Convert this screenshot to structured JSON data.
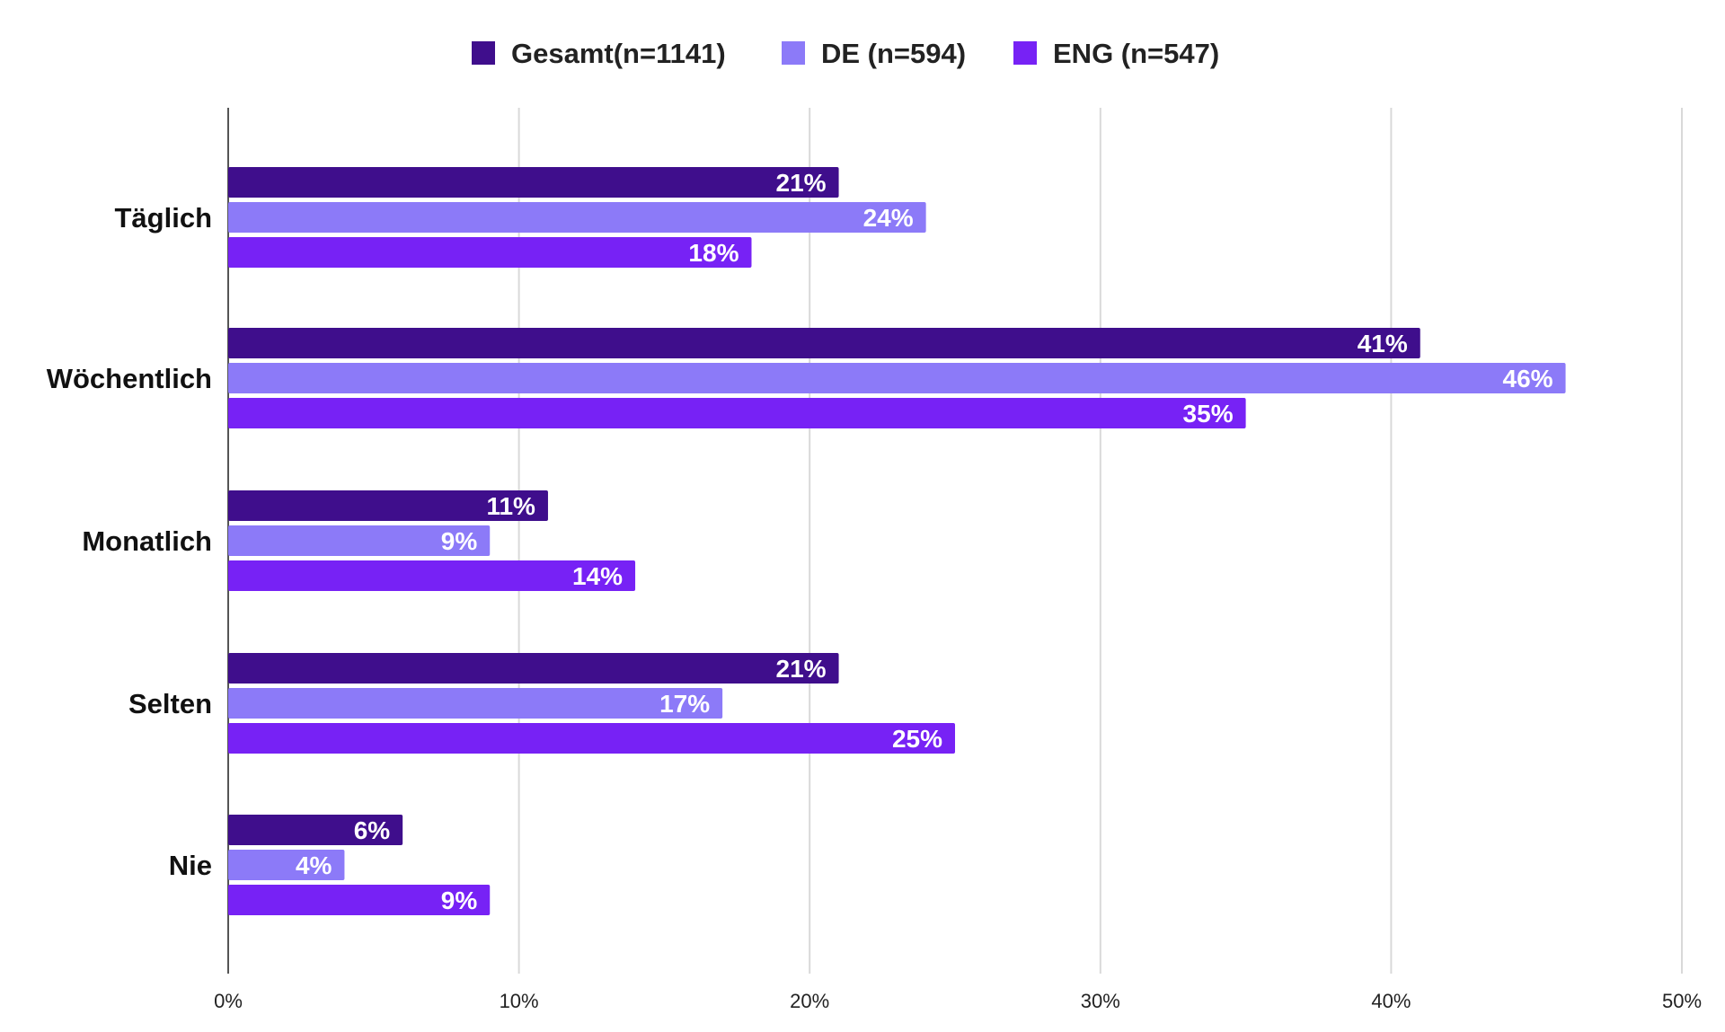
{
  "chart_data": {
    "type": "bar",
    "orientation": "horizontal",
    "categories": [
      "Täglich",
      "Wöchentlich",
      "Monatlich",
      "Selten",
      "Nie"
    ],
    "series": [
      {
        "name": "Gesamt(n=1141)",
        "color": "#3f0e8c",
        "values": [
          21,
          41,
          11,
          21,
          6
        ],
        "labels": [
          "21%",
          "41%",
          "11%",
          "21%",
          "6%"
        ]
      },
      {
        "name": "DE (n=594)",
        "color": "#8c7af8",
        "values": [
          24,
          46,
          9,
          17,
          4
        ],
        "labels": [
          "24%",
          "46%",
          "9%",
          "17%",
          "4%"
        ]
      },
      {
        "name": "ENG (n=547)",
        "color": "#7722f5",
        "values": [
          18,
          35,
          14,
          25,
          9
        ],
        "labels": [
          "18%",
          "35%",
          "14%",
          "25%",
          "9%"
        ]
      }
    ],
    "xlim": [
      0,
      50
    ],
    "xticks": [
      "0%",
      "10%",
      "20%",
      "30%",
      "40%",
      "50%"
    ],
    "grid": true,
    "legend_position": "top"
  }
}
